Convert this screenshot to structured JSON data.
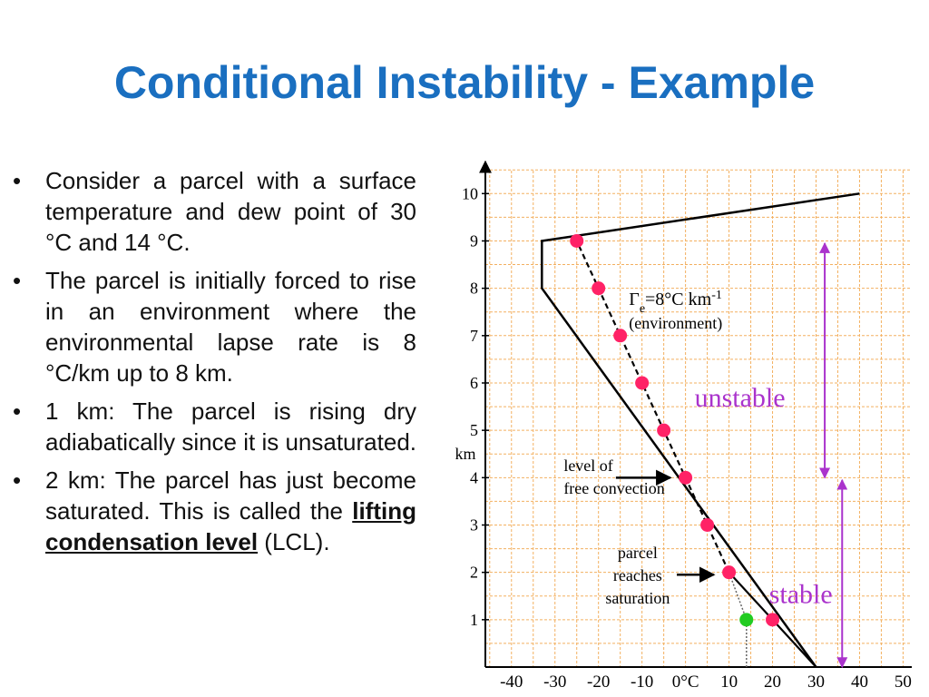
{
  "slide": {
    "title": "Conditional Instability - Example",
    "bullets": [
      {
        "text": "Consider a parcel with a surface temperature and dew point of 30 °C and 14 °C."
      },
      {
        "text": "The parcel is initially forced to rise in an environment where the environmental lapse rate is 8 °C/km up to 8 km."
      },
      {
        "text": "1 km: The parcel is rising dry adiabatically since it is unsaturated."
      },
      {
        "text_before": "2 km: The parcel has just become saturated. This is called the ",
        "emphasis": "lifting condensation level",
        "text_after": " (LCL)."
      }
    ],
    "bullet_symbol": "•"
  },
  "chart_data": {
    "type": "line",
    "x_tick_labels": [
      "-40",
      "-30",
      "-20",
      "-10",
      "0°C",
      "10",
      "20",
      "30",
      "40",
      "50"
    ],
    "x_ticks": [
      -40,
      -30,
      -20,
      -10,
      0,
      10,
      20,
      30,
      40,
      50
    ],
    "y_ticks": [
      1,
      2,
      3,
      4,
      5,
      6,
      7,
      8,
      9,
      10
    ],
    "ylabel": "km",
    "xlim": [
      -46,
      52
    ],
    "ylim": [
      0,
      10.6
    ],
    "grid": true,
    "grid_color": "#f3b060",
    "environment_line": {
      "points": [
        [
          30,
          0
        ],
        [
          -33,
          8
        ],
        [
          -33,
          9
        ],
        [
          40,
          10
        ]
      ],
      "color": "#000000"
    },
    "parcel_path": {
      "points": [
        [
          30,
          0
        ],
        [
          20,
          1
        ],
        [
          10,
          2
        ],
        [
          5,
          3
        ],
        [
          0,
          4
        ],
        [
          -5,
          5
        ],
        [
          -10,
          6
        ],
        [
          -15,
          7
        ],
        [
          -20,
          8
        ],
        [
          -25,
          9
        ]
      ],
      "dashed_from_km": 2,
      "color": "#000000"
    },
    "parcel_markers": {
      "points": [
        [
          20,
          1
        ],
        [
          10,
          2
        ],
        [
          5,
          3
        ],
        [
          0,
          4
        ],
        [
          -5,
          5
        ],
        [
          -10,
          6
        ],
        [
          -15,
          7
        ],
        [
          -20,
          8
        ],
        [
          -25,
          9
        ]
      ],
      "color": "#ff2266"
    },
    "dewpoint_marker": {
      "point": [
        14,
        1
      ],
      "color": "#22cc22"
    },
    "dewpoint_line": {
      "points": [
        [
          14,
          0
        ],
        [
          14,
          1
        ],
        [
          10,
          2
        ]
      ],
      "color": "#666666"
    },
    "annotations": {
      "environment_label_line1": "Γe=8°C km-1",
      "environment_label_line2": "(environment)",
      "lfc_line1": "level of",
      "lfc_line2": "free convection",
      "saturation_line1": "parcel",
      "saturation_line2": "reaches",
      "saturation_line3": "saturation",
      "unstable": "unstable",
      "stable": "stable"
    },
    "region_color": "#aa33cc",
    "unstable_range_km": [
      4,
      9
    ],
    "stable_range_km": [
      0,
      4
    ]
  }
}
